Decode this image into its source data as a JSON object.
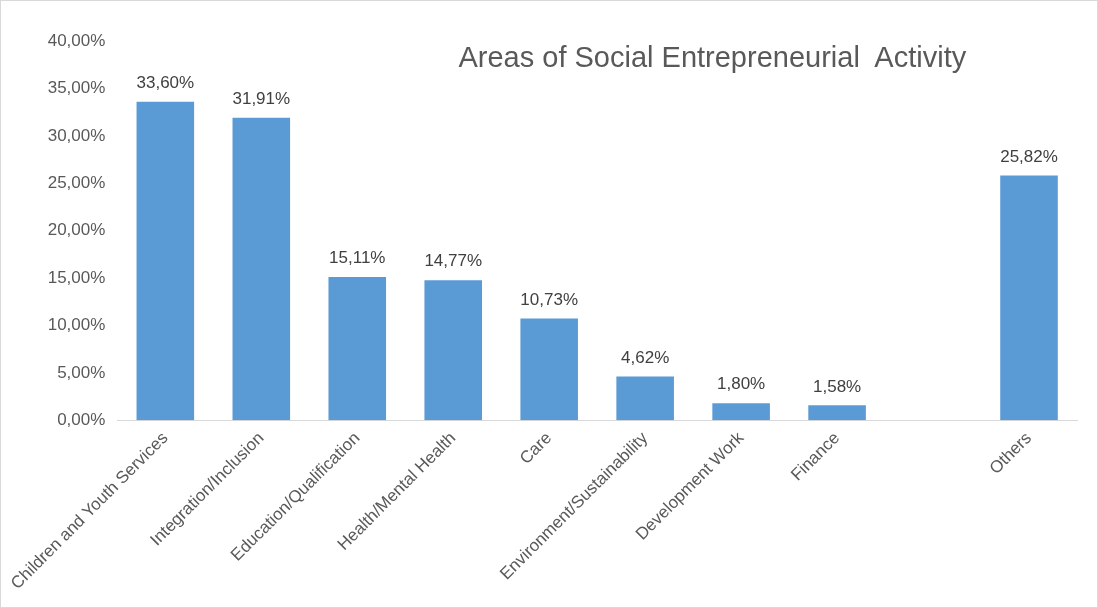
{
  "chart_data": {
    "type": "bar",
    "title": "Areas of Social Entrepreneurial  Activity",
    "categories": [
      "Children and Youth Services",
      "Integration/Inclusion",
      "Education/Qualification",
      "Health/Mental Health",
      "Care",
      "Environment/Sustainability",
      "Development Work",
      "Finance",
      null,
      "Others"
    ],
    "values": [
      33.6,
      31.91,
      15.11,
      14.77,
      10.73,
      4.62,
      1.8,
      1.58,
      null,
      25.82
    ],
    "value_labels": [
      "33,60%",
      "31,91%",
      "15,11%",
      "14,77%",
      "10,73%",
      "4,62%",
      "1,80%",
      "1,58%",
      null,
      "25,82%"
    ],
    "color": "#5b9bd5",
    "ylim": [
      0,
      40
    ],
    "yticks": [
      {
        "value": 0,
        "label": "0,00%"
      },
      {
        "value": 5,
        "label": "5,00%"
      },
      {
        "value": 10,
        "label": "10,00%"
      },
      {
        "value": 15,
        "label": "15,00%"
      },
      {
        "value": 20,
        "label": "20,00%"
      },
      {
        "value": 25,
        "label": "25,00%"
      },
      {
        "value": 30,
        "label": "30,00%"
      },
      {
        "value": 35,
        "label": "35,00%"
      },
      {
        "value": 40,
        "label": "40,00%"
      }
    ],
    "grid": false,
    "legend": false
  }
}
